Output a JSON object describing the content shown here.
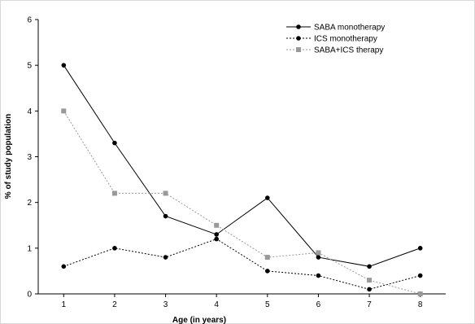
{
  "chart_data": {
    "type": "line",
    "xlabel": "Age (in years)",
    "ylabel": "% of study population",
    "x": [
      1,
      2,
      3,
      4,
      5,
      6,
      7,
      8
    ],
    "xlim": [
      0.5,
      8.5
    ],
    "ylim": [
      0,
      6
    ],
    "yticks": [
      0,
      1,
      2,
      3,
      4,
      5,
      6
    ],
    "grid": false,
    "legend_position": "top-right",
    "series": [
      {
        "name": "SABA monotherapy",
        "values": [
          5.0,
          3.3,
          1.7,
          1.3,
          2.1,
          0.8,
          0.6,
          1.0
        ],
        "color": "#000000",
        "dash": "solid",
        "marker": "circle"
      },
      {
        "name": "ICS monotherapy",
        "values": [
          0.6,
          1.0,
          0.8,
          1.2,
          0.5,
          0.4,
          0.1,
          0.4
        ],
        "color": "#000000",
        "dash": "dotted",
        "marker": "circle"
      },
      {
        "name": "SABA+ICS therapy",
        "values": [
          4.0,
          2.2,
          2.2,
          1.5,
          0.8,
          0.9,
          0.3,
          0.0
        ],
        "color": "#999999",
        "dash": "dotted",
        "marker": "square"
      }
    ]
  }
}
